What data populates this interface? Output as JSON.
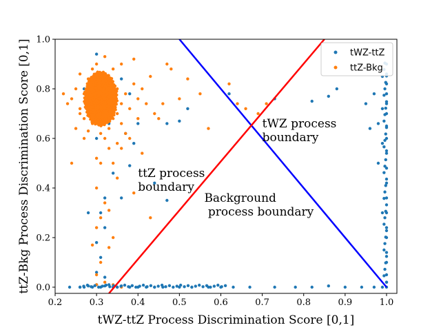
{
  "chart_data": {
    "type": "scatter",
    "xlabel": "tWZ-ttZ Process Discrimination Score [0,1]",
    "ylabel": "ttZ-Bkg Process Discrimination Score [0,1]",
    "xlim": [
      0.2,
      1.025
    ],
    "ylim": [
      -0.025,
      1.0
    ],
    "xticks": [
      "0.2",
      "0.3",
      "0.4",
      "0.5",
      "0.6",
      "0.7",
      "0.8",
      "0.9",
      "1.0"
    ],
    "yticks": [
      "0.0",
      "0.2",
      "0.4",
      "0.6",
      "0.8",
      "1.0"
    ],
    "grid": false,
    "legend_position": "top-right",
    "series": [
      {
        "name": "tWZ-ttZ",
        "color": "#1f77b4",
        "points": [
          [
            0.235,
            0.0
          ],
          [
            0.26,
            0.0
          ],
          [
            0.27,
            0.0
          ],
          [
            0.28,
            0.005
          ],
          [
            0.29,
            0.0
          ],
          [
            0.3,
            0.01
          ],
          [
            0.31,
            0.0
          ],
          [
            0.32,
            0.005
          ],
          [
            0.33,
            0.01
          ],
          [
            0.34,
            0.0
          ],
          [
            0.35,
            0.0
          ],
          [
            0.36,
            0.005
          ],
          [
            0.38,
            0.0
          ],
          [
            0.4,
            0.0
          ],
          [
            0.42,
            0.0
          ],
          [
            0.44,
            0.0
          ],
          [
            0.46,
            0.0
          ],
          [
            0.5,
            0.0
          ],
          [
            0.53,
            0.0
          ],
          [
            0.57,
            0.0
          ],
          [
            0.6,
            0.0
          ],
          [
            0.63,
            0.0
          ],
          [
            0.67,
            0.0
          ],
          [
            0.73,
            0.0
          ],
          [
            0.78,
            0.0
          ],
          [
            0.82,
            0.0
          ],
          [
            0.86,
            0.005
          ],
          [
            0.9,
            0.0
          ],
          [
            0.94,
            0.0
          ],
          [
            0.97,
            0.0
          ],
          [
            0.99,
            0.0
          ],
          [
            1.0,
            0.0
          ],
          [
            1.0,
            0.02
          ],
          [
            1.0,
            0.05
          ],
          [
            1.0,
            0.1
          ],
          [
            1.0,
            0.14
          ],
          [
            1.0,
            0.2
          ],
          [
            1.0,
            0.24
          ],
          [
            1.0,
            0.3
          ],
          [
            1.0,
            0.36
          ],
          [
            1.0,
            0.42
          ],
          [
            1.0,
            0.48
          ],
          [
            1.0,
            0.55
          ],
          [
            1.0,
            0.6
          ],
          [
            1.0,
            0.65
          ],
          [
            1.0,
            0.7
          ],
          [
            1.0,
            0.74
          ],
          [
            1.0,
            0.78
          ],
          [
            1.0,
            0.82
          ],
          [
            1.0,
            0.86
          ],
          [
            1.0,
            0.9
          ],
          [
            0.99,
            0.85
          ],
          [
            0.99,
            0.72
          ],
          [
            0.98,
            0.66
          ],
          [
            0.98,
            0.5
          ],
          [
            0.99,
            0.3
          ],
          [
            0.97,
            0.78
          ],
          [
            0.96,
            0.64
          ],
          [
            0.99,
            0.58
          ],
          [
            0.95,
            0.74
          ],
          [
            0.88,
            0.8
          ],
          [
            0.86,
            0.77
          ],
          [
            0.82,
            0.75
          ],
          [
            0.73,
            0.76
          ],
          [
            0.62,
            0.78
          ],
          [
            0.52,
            0.72
          ],
          [
            0.5,
            0.67
          ],
          [
            0.47,
            0.66
          ],
          [
            0.4,
            0.66
          ],
          [
            0.39,
            0.58
          ],
          [
            0.37,
            0.62
          ],
          [
            0.38,
            0.49
          ],
          [
            0.34,
            0.46
          ],
          [
            0.32,
            0.36
          ],
          [
            0.31,
            0.3
          ],
          [
            0.3,
            0.18
          ],
          [
            0.32,
            0.24
          ],
          [
            0.31,
            0.12
          ],
          [
            0.3,
            0.06
          ],
          [
            0.32,
            0.04
          ],
          [
            0.28,
            0.3
          ],
          [
            0.36,
            0.36
          ],
          [
            0.44,
            0.42
          ],
          [
            0.47,
            0.35
          ],
          [
            0.3,
            0.82
          ],
          [
            0.31,
            0.78
          ],
          [
            0.32,
            0.7
          ],
          [
            0.29,
            0.76
          ],
          [
            0.33,
            0.66
          ],
          [
            0.3,
            0.94
          ],
          [
            0.38,
            0.78
          ],
          [
            0.36,
            0.84
          ],
          [
            0.27,
            0.8
          ],
          [
            0.3,
            0.6
          ],
          [
            0.34,
            0.74
          ]
        ]
      },
      {
        "name": "ttZ-Bkg",
        "color": "#ff7f0e",
        "points": [
          [
            0.31,
            0.76
          ],
          [
            0.3,
            0.78
          ],
          [
            0.32,
            0.74
          ],
          [
            0.29,
            0.8
          ],
          [
            0.33,
            0.77
          ],
          [
            0.31,
            0.72
          ],
          [
            0.3,
            0.74
          ],
          [
            0.32,
            0.79
          ],
          [
            0.28,
            0.75
          ],
          [
            0.34,
            0.76
          ],
          [
            0.31,
            0.82
          ],
          [
            0.3,
            0.7
          ],
          [
            0.33,
            0.71
          ],
          [
            0.29,
            0.73
          ],
          [
            0.32,
            0.84
          ],
          [
            0.35,
            0.8
          ],
          [
            0.27,
            0.78
          ],
          [
            0.31,
            0.68
          ],
          [
            0.36,
            0.74
          ],
          [
            0.26,
            0.72
          ],
          [
            0.3,
            0.86
          ],
          [
            0.34,
            0.68
          ],
          [
            0.28,
            0.84
          ],
          [
            0.33,
            0.64
          ],
          [
            0.29,
            0.66
          ],
          [
            0.31,
            0.62
          ],
          [
            0.35,
            0.7
          ],
          [
            0.37,
            0.78
          ],
          [
            0.25,
            0.8
          ],
          [
            0.3,
            0.9
          ],
          [
            0.32,
            0.6
          ],
          [
            0.38,
            0.72
          ],
          [
            0.27,
            0.68
          ],
          [
            0.34,
            0.88
          ],
          [
            0.36,
            0.66
          ],
          [
            0.4,
            0.76
          ],
          [
            0.42,
            0.74
          ],
          [
            0.44,
            0.7
          ],
          [
            0.46,
            0.74
          ],
          [
            0.24,
            0.76
          ],
          [
            0.26,
            0.86
          ],
          [
            0.33,
            0.56
          ],
          [
            0.3,
            0.52
          ],
          [
            0.31,
            0.5
          ],
          [
            0.35,
            0.58
          ],
          [
            0.39,
            0.82
          ],
          [
            0.41,
            0.8
          ],
          [
            0.43,
            0.85
          ],
          [
            0.45,
            0.68
          ],
          [
            0.47,
            0.9
          ],
          [
            0.48,
            0.88
          ],
          [
            0.5,
            0.76
          ],
          [
            0.52,
            0.84
          ],
          [
            0.55,
            0.78
          ],
          [
            0.57,
            0.64
          ],
          [
            0.62,
            0.82
          ],
          [
            0.64,
            0.74
          ],
          [
            0.66,
            0.72
          ],
          [
            0.69,
            0.7
          ],
          [
            0.71,
            0.74
          ],
          [
            0.37,
            0.62
          ],
          [
            0.36,
            0.56
          ],
          [
            0.34,
            0.5
          ],
          [
            0.3,
            0.4
          ],
          [
            0.32,
            0.34
          ],
          [
            0.31,
            0.28
          ],
          [
            0.3,
            0.24
          ],
          [
            0.33,
            0.16
          ],
          [
            0.31,
            0.1
          ],
          [
            0.3,
            0.05
          ],
          [
            0.32,
            0.02
          ],
          [
            0.29,
            0.17
          ],
          [
            0.33,
            0.31
          ],
          [
            0.35,
            0.44
          ],
          [
            0.28,
            0.63
          ],
          [
            0.27,
            0.6
          ],
          [
            0.26,
            0.7
          ],
          [
            0.25,
            0.64
          ],
          [
            0.24,
            0.5
          ],
          [
            0.22,
            0.78
          ],
          [
            0.23,
            0.74
          ],
          [
            0.39,
            0.92
          ],
          [
            0.32,
            0.93
          ],
          [
            0.29,
            0.88
          ],
          [
            0.36,
            0.9
          ],
          [
            0.4,
            0.68
          ],
          [
            0.38,
            0.6
          ],
          [
            0.41,
            0.54
          ],
          [
            0.39,
            0.38
          ],
          [
            0.43,
            0.28
          ],
          [
            0.34,
            0.2
          ],
          [
            0.3,
            0.01
          ],
          [
            0.34,
            0.01
          ],
          [
            0.36,
            0.0
          ]
        ]
      }
    ],
    "lines": [
      {
        "name": "tWZ boundary",
        "color": "#0000ff",
        "from": [
          0.5,
          1.0
        ],
        "to": [
          1.0,
          0.0
        ]
      },
      {
        "name": "background boundary",
        "color": "#ff0000",
        "from": [
          0.33,
          -0.025
        ],
        "to": [
          0.85,
          1.0
        ]
      }
    ],
    "annotations": [
      {
        "lines": [
          "tWZ process",
          "boundary"
        ],
        "x": 0.7,
        "y": 0.645
      },
      {
        "lines": [
          "ttZ process",
          "boundary"
        ],
        "x": 0.4,
        "y": 0.445
      },
      {
        "lines": [
          "Background",
          " process boundary"
        ],
        "x": 0.56,
        "y": 0.345
      }
    ]
  }
}
